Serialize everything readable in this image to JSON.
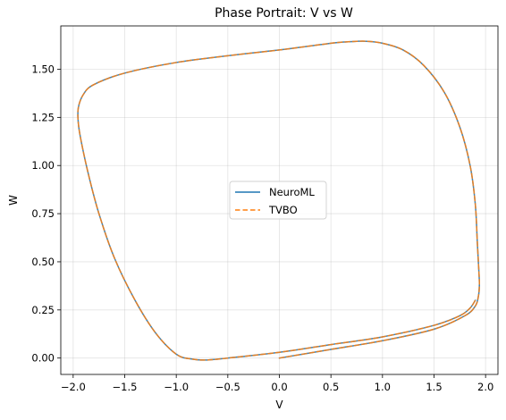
{
  "chart_data": {
    "type": "line",
    "title": "Phase Portrait: V vs W",
    "xlabel": "V",
    "ylabel": "W",
    "xlim": [
      -2.12,
      2.12
    ],
    "ylim": [
      -0.085,
      1.725
    ],
    "xticks": [
      -2.0,
      -1.5,
      -1.0,
      -0.5,
      0.0,
      0.5,
      1.0,
      1.5,
      2.0
    ],
    "xtick_labels": [
      "−2.0",
      "−1.5",
      "−1.0",
      "−0.5",
      "0.0",
      "0.5",
      "1.0",
      "1.5",
      "2.0"
    ],
    "yticks": [
      0.0,
      0.25,
      0.5,
      0.75,
      1.0,
      1.25,
      1.5
    ],
    "ytick_labels": [
      "0.00",
      "0.25",
      "0.50",
      "0.75",
      "1.00",
      "1.25",
      "1.50"
    ],
    "grid": true,
    "legend": {
      "position": "center",
      "entries": [
        "NeuroML",
        "TVBO"
      ]
    },
    "series": [
      {
        "name": "NeuroML",
        "color": "#1f77b4",
        "style": "solid",
        "x": [
          0.0,
          0.5,
          1.0,
          1.5,
          1.8,
          1.9,
          1.93,
          1.94,
          1.935,
          1.92,
          1.9,
          1.85,
          1.75,
          1.6,
          1.4,
          1.2,
          1.0,
          0.85,
          0.75,
          0.65,
          0.55,
          0.4,
          0.0,
          -0.5,
          -1.0,
          -1.5,
          -1.8,
          -1.9,
          -1.95,
          -1.95,
          -1.92,
          -1.85,
          -1.75,
          -1.6,
          -1.4,
          -1.2,
          -1.0,
          -0.85,
          -0.7,
          -0.5,
          0.0,
          0.5,
          1.0,
          1.5,
          1.75,
          1.85,
          1.9
        ],
        "y": [
          0.0,
          0.045,
          0.09,
          0.15,
          0.22,
          0.27,
          0.32,
          0.38,
          0.45,
          0.6,
          0.8,
          1.0,
          1.2,
          1.38,
          1.52,
          1.6,
          1.635,
          1.645,
          1.645,
          1.642,
          1.638,
          1.628,
          1.6,
          1.57,
          1.535,
          1.48,
          1.42,
          1.37,
          1.3,
          1.22,
          1.12,
          0.95,
          0.75,
          0.52,
          0.3,
          0.13,
          0.02,
          -0.005,
          -0.01,
          0.0,
          0.03,
          0.07,
          0.11,
          0.17,
          0.22,
          0.26,
          0.3
        ]
      },
      {
        "name": "TVBO",
        "color": "#ff7f0e",
        "style": "dashed",
        "x": [
          0.0,
          0.5,
          1.0,
          1.5,
          1.8,
          1.9,
          1.93,
          1.94,
          1.935,
          1.92,
          1.9,
          1.85,
          1.75,
          1.6,
          1.4,
          1.2,
          1.0,
          0.85,
          0.75,
          0.65,
          0.55,
          0.4,
          0.0,
          -0.5,
          -1.0,
          -1.5,
          -1.8,
          -1.9,
          -1.95,
          -1.95,
          -1.92,
          -1.85,
          -1.75,
          -1.6,
          -1.4,
          -1.2,
          -1.0,
          -0.85,
          -0.7,
          -0.5,
          0.0,
          0.5,
          1.0,
          1.5,
          1.75,
          1.85,
          1.9
        ],
        "y": [
          0.0,
          0.045,
          0.09,
          0.15,
          0.22,
          0.27,
          0.32,
          0.38,
          0.45,
          0.6,
          0.8,
          1.0,
          1.2,
          1.38,
          1.52,
          1.6,
          1.635,
          1.645,
          1.645,
          1.642,
          1.638,
          1.628,
          1.6,
          1.57,
          1.535,
          1.48,
          1.42,
          1.37,
          1.3,
          1.22,
          1.12,
          0.95,
          0.75,
          0.52,
          0.3,
          0.13,
          0.02,
          -0.005,
          -0.01,
          0.0,
          0.03,
          0.07,
          0.11,
          0.17,
          0.22,
          0.26,
          0.3
        ]
      }
    ]
  }
}
